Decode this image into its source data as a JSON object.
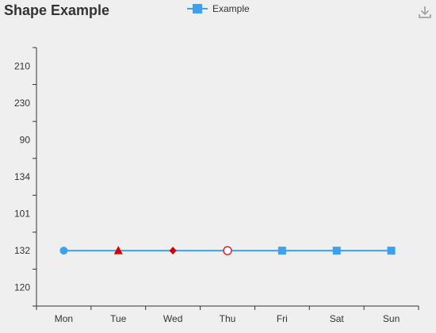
{
  "chart_data": {
    "type": "line",
    "title": "Shape Example",
    "y_categories": [
      "120",
      "132",
      "101",
      "134",
      "90",
      "230",
      "210"
    ],
    "categories": [
      "Mon",
      "Tue",
      "Wed",
      "Thu",
      "Fri",
      "Sat",
      "Sun"
    ],
    "series": [
      {
        "name": "Example",
        "color": "#3ba1f0",
        "values": [
          "132",
          "132",
          "132",
          "132",
          "132",
          "132",
          "132"
        ],
        "point_symbols": [
          "circle",
          "triangle",
          "diamond",
          "empty-circle",
          "square",
          "square",
          "square"
        ],
        "point_colors": [
          "#3ba1f0",
          "#d40000",
          "#d40000",
          "#d40000",
          "#3ba1f0",
          "#3ba1f0",
          "#3ba1f0"
        ]
      }
    ],
    "legend_position": "top-center",
    "grid": false
  },
  "toolbar": {
    "download_icon": "download-icon"
  }
}
